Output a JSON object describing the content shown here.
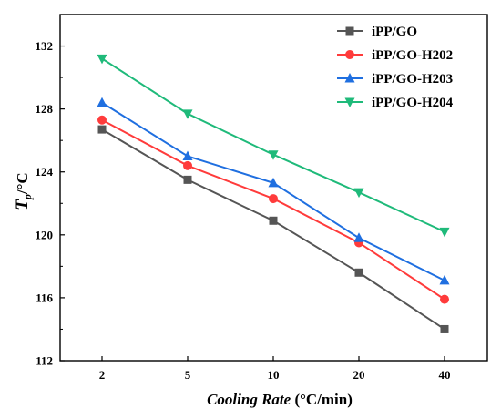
{
  "chart_data": {
    "type": "line",
    "categories": [
      "2",
      "5",
      "10",
      "20",
      "40"
    ],
    "series": [
      {
        "name": "iPP/GO",
        "values": [
          126.7,
          123.5,
          120.9,
          117.6,
          114.0
        ],
        "color": "#555555",
        "marker": "square"
      },
      {
        "name": "iPP/GO-H202",
        "values": [
          127.3,
          124.4,
          122.3,
          119.5,
          115.9
        ],
        "color": "#ff3b3b",
        "marker": "circle"
      },
      {
        "name": "iPP/GO-H203",
        "values": [
          128.4,
          125.0,
          123.3,
          119.8,
          117.1
        ],
        "color": "#1f6fe0",
        "marker": "triangle-up"
      },
      {
        "name": "iPP/GO-H204",
        "values": [
          131.2,
          127.7,
          125.1,
          122.7,
          120.2
        ],
        "color": "#1fba7a",
        "marker": "triangle-down"
      }
    ],
    "xlabel_italic": "Cooling Rate",
    "xlabel_unit": " (°C/min)",
    "ylabel_main": "T",
    "ylabel_sub": "p",
    "ylabel_unit": "/°C",
    "ylim": [
      112,
      134
    ],
    "yticks": [
      112,
      116,
      120,
      124,
      128,
      132
    ],
    "legend_position": "top-right",
    "grid": false
  }
}
